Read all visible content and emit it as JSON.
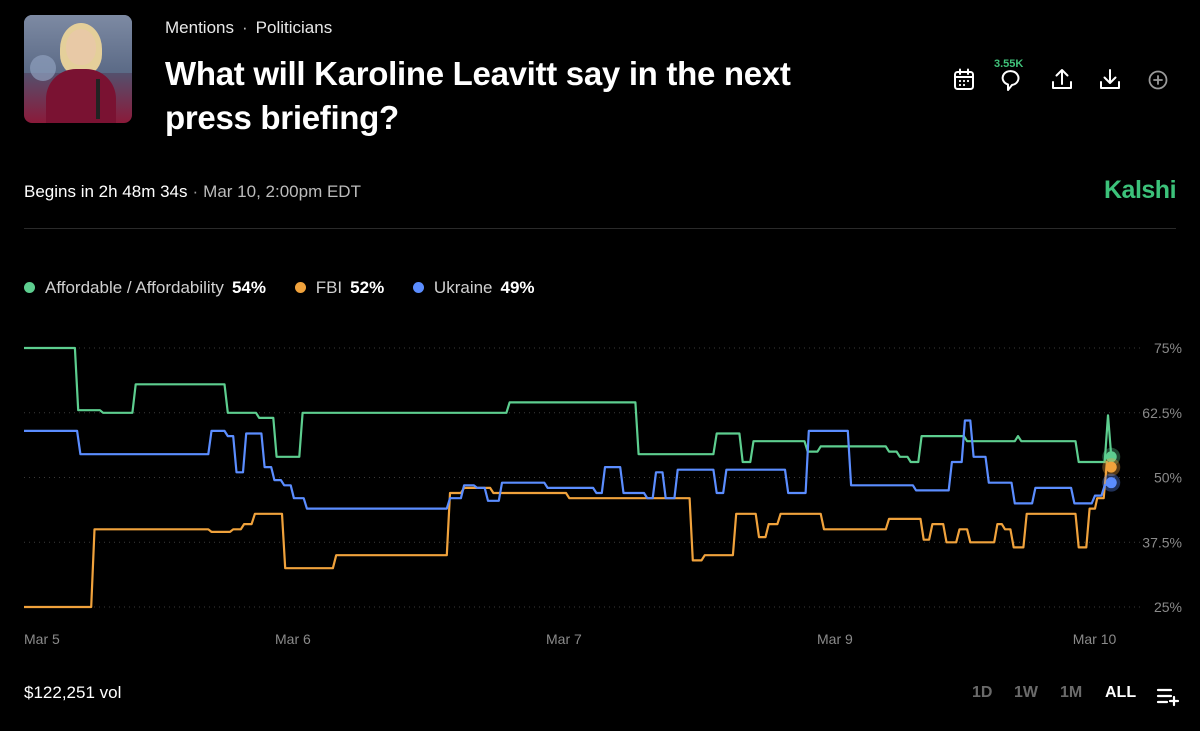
{
  "header": {
    "breadcrumb": [
      "Mentions",
      "Politicians"
    ],
    "title": "What will Karoline Leavitt say in the next press briefing?",
    "comment_count": "3.55K",
    "brand": "Kalshi"
  },
  "status": {
    "begins": "Begins in 2h 48m 34s",
    "date": "Mar 10, 2:00pm EDT"
  },
  "legend": [
    {
      "name": "Affordable / Affordability",
      "value": "54%",
      "color": "#5dce8f"
    },
    {
      "name": "FBI",
      "value": "52%",
      "color": "#f0a23c"
    },
    {
      "name": "Ukraine",
      "value": "49%",
      "color": "#5b8dff"
    }
  ],
  "footer": {
    "volume": "$122,251 vol",
    "ranges": [
      "1D",
      "1W",
      "1M",
      "ALL"
    ],
    "active_range": "ALL"
  },
  "chart_data": {
    "type": "line",
    "x_ticks": [
      "Mar 5",
      "Mar 6",
      "Mar 7",
      "Mar 9",
      "Mar 10"
    ],
    "y_ticks": [
      "75%",
      "62.5%",
      "50%",
      "37.5%",
      "25%"
    ],
    "ylim": [
      25,
      75
    ],
    "xlim": [
      0,
      100
    ],
    "grid": "horizontal-dotted",
    "series": [
      {
        "name": "Affordable / Affordability",
        "color": "#5dce8f",
        "points": [
          [
            0,
            75
          ],
          [
            4.7,
            75
          ],
          [
            5,
            63
          ],
          [
            7,
            63
          ],
          [
            7.3,
            62.5
          ],
          [
            10,
            62.5
          ],
          [
            10.3,
            68
          ],
          [
            18.5,
            68
          ],
          [
            18.8,
            62.5
          ],
          [
            21.4,
            62.5
          ],
          [
            21.7,
            61.5
          ],
          [
            23,
            61.5
          ],
          [
            23.3,
            54
          ],
          [
            25.4,
            54
          ],
          [
            25.7,
            62.5
          ],
          [
            44.5,
            62.5
          ],
          [
            44.8,
            64.5
          ],
          [
            56.4,
            64.5
          ],
          [
            56.7,
            54.5
          ],
          [
            63.6,
            54.5
          ],
          [
            63.9,
            58.5
          ],
          [
            66,
            58.5
          ],
          [
            66.3,
            53
          ],
          [
            67,
            53
          ],
          [
            67.3,
            57
          ],
          [
            72,
            57
          ],
          [
            72.3,
            55
          ],
          [
            73.2,
            55
          ],
          [
            73.5,
            56
          ],
          [
            79.5,
            56
          ],
          [
            79.8,
            55
          ],
          [
            80.5,
            55
          ],
          [
            80.8,
            54
          ],
          [
            81.5,
            54
          ],
          [
            81.8,
            53
          ],
          [
            82.5,
            53
          ],
          [
            82.8,
            58
          ],
          [
            86.7,
            58
          ],
          [
            87,
            57
          ],
          [
            91.4,
            57
          ],
          [
            91.7,
            58
          ],
          [
            92,
            57
          ],
          [
            97,
            57
          ],
          [
            97.3,
            53
          ],
          [
            99.7,
            53
          ],
          [
            100,
            62
          ],
          [
            100.3,
            54
          ]
        ]
      },
      {
        "name": "FBI",
        "color": "#f0a23c",
        "points": [
          [
            0,
            25
          ],
          [
            6.2,
            25
          ],
          [
            6.5,
            40
          ],
          [
            17,
            40
          ],
          [
            17.3,
            39.5
          ],
          [
            19,
            39.5
          ],
          [
            19.3,
            40
          ],
          [
            20,
            40
          ],
          [
            20.3,
            41
          ],
          [
            21,
            41
          ],
          [
            21.3,
            43
          ],
          [
            23.8,
            43
          ],
          [
            24.1,
            32.5
          ],
          [
            28.5,
            32.5
          ],
          [
            28.8,
            35
          ],
          [
            39,
            35
          ],
          [
            39.3,
            47
          ],
          [
            40.3,
            47
          ],
          [
            40.6,
            48
          ],
          [
            43,
            48
          ],
          [
            43.3,
            47
          ],
          [
            50,
            47
          ],
          [
            50.3,
            46
          ],
          [
            61.4,
            46
          ],
          [
            61.7,
            34
          ],
          [
            62.5,
            34
          ],
          [
            62.8,
            35
          ],
          [
            65.4,
            35
          ],
          [
            65.7,
            43
          ],
          [
            67.5,
            43
          ],
          [
            67.8,
            38.5
          ],
          [
            68.4,
            38.5
          ],
          [
            68.7,
            41
          ],
          [
            69.5,
            41
          ],
          [
            69.8,
            43
          ],
          [
            73.5,
            43
          ],
          [
            73.8,
            40
          ],
          [
            79.5,
            40
          ],
          [
            79.8,
            42
          ],
          [
            82.7,
            42
          ],
          [
            83,
            38
          ],
          [
            83.5,
            38
          ],
          [
            83.8,
            41
          ],
          [
            84.8,
            41
          ],
          [
            85.1,
            37.5
          ],
          [
            86,
            37.5
          ],
          [
            86.3,
            40
          ],
          [
            87,
            40
          ],
          [
            87.3,
            37.5
          ],
          [
            89.5,
            37.5
          ],
          [
            89.8,
            41
          ],
          [
            90.2,
            41
          ],
          [
            90.5,
            40
          ],
          [
            91,
            40
          ],
          [
            91.3,
            36.5
          ],
          [
            92.2,
            36.5
          ],
          [
            92.5,
            43
          ],
          [
            97,
            43
          ],
          [
            97.3,
            36.5
          ],
          [
            98,
            36.5
          ],
          [
            98.3,
            44
          ],
          [
            98.8,
            44
          ],
          [
            99,
            46
          ],
          [
            99.6,
            46
          ],
          [
            99.9,
            53
          ],
          [
            100.3,
            52
          ]
        ]
      },
      {
        "name": "Ukraine",
        "color": "#5b8dff",
        "points": [
          [
            0,
            59
          ],
          [
            4.9,
            59
          ],
          [
            5.2,
            54.5
          ],
          [
            17,
            54.5
          ],
          [
            17.3,
            59
          ],
          [
            18.5,
            59
          ],
          [
            18.8,
            58
          ],
          [
            19.3,
            58
          ],
          [
            19.6,
            51
          ],
          [
            20.2,
            51
          ],
          [
            20.5,
            58.5
          ],
          [
            21.9,
            58.5
          ],
          [
            22.2,
            52
          ],
          [
            22.8,
            52
          ],
          [
            23.1,
            49.5
          ],
          [
            23.7,
            49.5
          ],
          [
            24,
            48.5
          ],
          [
            24.6,
            48.5
          ],
          [
            24.9,
            46
          ],
          [
            25.8,
            46
          ],
          [
            26.1,
            44
          ],
          [
            39,
            44
          ],
          [
            39.3,
            46
          ],
          [
            40.3,
            46
          ],
          [
            40.6,
            48.5
          ],
          [
            41.5,
            48.5
          ],
          [
            41.8,
            48
          ],
          [
            42.5,
            48
          ],
          [
            42.8,
            45.5
          ],
          [
            43.8,
            45.5
          ],
          [
            44.1,
            49
          ],
          [
            48,
            49
          ],
          [
            48.3,
            48
          ],
          [
            52.5,
            48
          ],
          [
            52.8,
            47
          ],
          [
            53.3,
            47
          ],
          [
            53.6,
            52
          ],
          [
            55,
            52
          ],
          [
            55.3,
            47
          ],
          [
            57.2,
            47
          ],
          [
            57.5,
            46
          ],
          [
            58,
            46
          ],
          [
            58.3,
            51
          ],
          [
            58.9,
            51
          ],
          [
            59.2,
            46
          ],
          [
            60,
            46
          ],
          [
            60.3,
            51.5
          ],
          [
            63.6,
            51.5
          ],
          [
            63.9,
            47
          ],
          [
            64.5,
            47
          ],
          [
            64.8,
            51.5
          ],
          [
            70.2,
            51.5
          ],
          [
            70.5,
            47
          ],
          [
            72.1,
            47
          ],
          [
            72.4,
            59
          ],
          [
            76,
            59
          ],
          [
            76.3,
            48.5
          ],
          [
            82,
            48.5
          ],
          [
            82.3,
            47.5
          ],
          [
            85.3,
            47.5
          ],
          [
            85.6,
            53
          ],
          [
            86.5,
            53
          ],
          [
            86.8,
            61
          ],
          [
            87.3,
            61
          ],
          [
            87.6,
            54
          ],
          [
            88.7,
            54
          ],
          [
            89,
            49
          ],
          [
            90.3,
            49
          ],
          [
            90.6,
            49
          ],
          [
            91.1,
            49
          ],
          [
            91.4,
            45
          ],
          [
            93,
            45
          ],
          [
            93.3,
            48
          ],
          [
            96.6,
            48
          ],
          [
            96.9,
            45
          ],
          [
            98.5,
            45
          ],
          [
            98.8,
            46.5
          ],
          [
            99.4,
            46.5
          ],
          [
            99.7,
            48.5
          ],
          [
            100.3,
            49
          ]
        ]
      }
    ]
  }
}
